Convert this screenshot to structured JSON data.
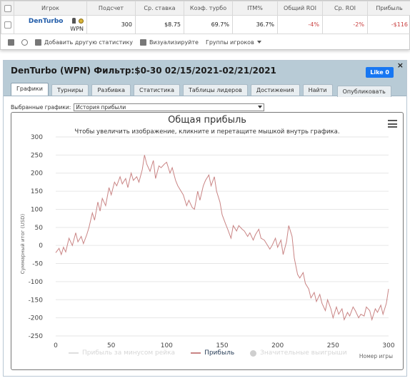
{
  "stats_table": {
    "headers": [
      "Игрок",
      "Подсчет",
      "Ср. ставка",
      "Коэф. турбо",
      "ITM%",
      "Общий ROI",
      "Ср. ROI",
      "Прибыль"
    ],
    "row": {
      "player": "DenTurbo",
      "site": "WPN",
      "count": "300",
      "avg_stake": "$8.75",
      "turbo_ratio": "69.7%",
      "itm": "36.7%",
      "total_roi": "-4%",
      "avg_roi": "-2%",
      "profit": "-$116"
    },
    "toolbar": {
      "add_stat": "Добавить другую статистику",
      "visualize": "Визуализируйте",
      "player_groups": "Группы игроков"
    }
  },
  "panel": {
    "title": "DenTurbo (WPN) Фильтр:$0-30 02/15/2021-02/21/2021",
    "like_label": "Like 0",
    "close_label": "×",
    "tabs": [
      "Графики",
      "Турниры",
      "Разбивка",
      "Статистика",
      "Таблицы лидеров",
      "Достижения",
      "Найти",
      "Опубликовать"
    ],
    "select_label": "Выбранные графики:",
    "select_value": "История прибыли"
  },
  "chart_data": {
    "type": "line",
    "title": "Общая прибыль",
    "subtitle": "Чтобы увеличить изображение, кликните и перетащите мышкой внутрь графика.",
    "ylabel": "Суммарный итог (USD)",
    "xlabel": "Номер игры",
    "xlim": [
      0,
      300
    ],
    "ylim": [
      -250,
      300
    ],
    "xticks": [
      0,
      50,
      100,
      150,
      200,
      250,
      300
    ],
    "yticks": [
      300,
      250,
      200,
      150,
      100,
      50,
      0,
      -50,
      -100,
      -150,
      -200,
      -250
    ],
    "grid": true,
    "legend_position": "bottom",
    "line_color": "#c98484",
    "series": [
      {
        "name": "Прибыль",
        "x": [
          0,
          3,
          5,
          7,
          9,
          12,
          15,
          18,
          20,
          23,
          25,
          28,
          30,
          33,
          35,
          38,
          40,
          42,
          45,
          48,
          50,
          53,
          55,
          58,
          60,
          63,
          65,
          68,
          70,
          73,
          75,
          78,
          80,
          82,
          85,
          88,
          90,
          93,
          95,
          98,
          100,
          103,
          105,
          108,
          110,
          113,
          115,
          118,
          120,
          123,
          125,
          128,
          130,
          133,
          135,
          138,
          140,
          143,
          145,
          148,
          150,
          153,
          155,
          158,
          160,
          163,
          165,
          168,
          170,
          173,
          175,
          178,
          180,
          183,
          185,
          188,
          190,
          193,
          195,
          198,
          200,
          203,
          205,
          208,
          210,
          213,
          215,
          218,
          220,
          223,
          225,
          228,
          230,
          233,
          235,
          238,
          240,
          243,
          245,
          248,
          250,
          253,
          255,
          258,
          260,
          263,
          265,
          268,
          270,
          273,
          275,
          278,
          280,
          283,
          285,
          288,
          290,
          293,
          295,
          298,
          300
        ],
        "values": [
          -20,
          -8,
          -25,
          -5,
          -18,
          20,
          0,
          35,
          10,
          25,
          5,
          30,
          50,
          90,
          70,
          120,
          95,
          130,
          110,
          160,
          140,
          175,
          165,
          190,
          170,
          185,
          160,
          200,
          180,
          190,
          175,
          210,
          250,
          225,
          205,
          235,
          185,
          220,
          215,
          225,
          230,
          200,
          215,
          180,
          165,
          150,
          140,
          110,
          125,
          105,
          100,
          150,
          125,
          165,
          180,
          195,
          165,
          190,
          150,
          120,
          85,
          60,
          45,
          20,
          55,
          40,
          55,
          45,
          40,
          25,
          35,
          15,
          30,
          45,
          20,
          15,
          5,
          -10,
          0,
          20,
          -5,
          15,
          -25,
          10,
          55,
          25,
          -35,
          -80,
          -90,
          -75,
          -105,
          -120,
          -145,
          -130,
          -155,
          -135,
          -160,
          -180,
          -150,
          -175,
          -200,
          -170,
          -190,
          -175,
          -205,
          -185,
          -195,
          -170,
          -180,
          -200,
          -190,
          -195,
          -170,
          -180,
          -205,
          -175,
          -185,
          -165,
          -190,
          -160,
          -120
        ]
      }
    ],
    "legend": [
      "Прибыль за минусом рейка",
      "Прибыль",
      "Значительные выигрыши"
    ]
  }
}
